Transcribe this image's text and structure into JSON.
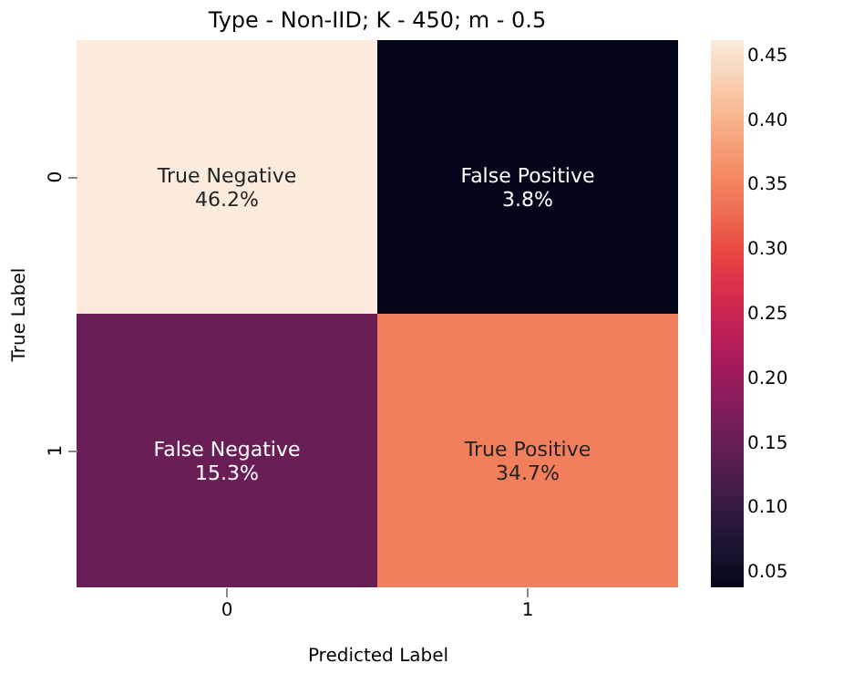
{
  "chart_data": {
    "type": "heatmap",
    "title": "Type - Non-IID; K - 450; m - 0.5",
    "xlabel": "Predicted Label",
    "ylabel": "True Label",
    "categories": [
      "0",
      "1"
    ],
    "y_categories": [
      "0",
      "1"
    ],
    "cells": [
      [
        0.462,
        0.038
      ],
      [
        0.153,
        0.347
      ]
    ],
    "cell_labels": [
      [
        "True Negative\n46.2%",
        "False Positive\n3.8%"
      ],
      [
        "False Negative\n15.3%",
        "True Positive\n34.7%"
      ]
    ],
    "clim": [
      0.038,
      0.462
    ],
    "cticks": [
      0.05,
      {
        "value": 0.1,
        "label": "0.10"
      },
      0.15,
      {
        "value": 0.2,
        "label": "0.20"
      },
      0.25,
      {
        "value": 0.3,
        "label": "0.30"
      },
      0.35,
      {
        "value": 0.4,
        "label": "0.40"
      },
      0.45
    ]
  }
}
